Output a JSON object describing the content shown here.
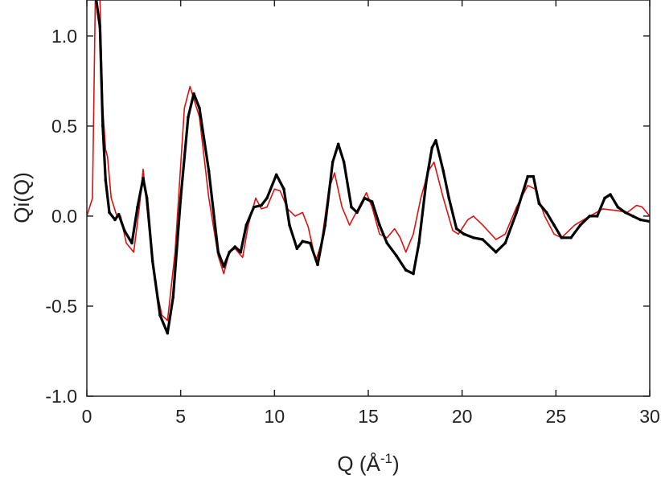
{
  "chart_data": {
    "type": "line",
    "title": "",
    "xlabel": "Q (Å",
    "xlabel_sup": "-1",
    "xlabel_close": ")",
    "ylabel": "Qi(Q)",
    "xlim": [
      0,
      30
    ],
    "ylim": [
      -1.0,
      1.2
    ],
    "grid": false,
    "legend": "none",
    "x_ticks": [
      0,
      5,
      10,
      15,
      20,
      25,
      30
    ],
    "x_tick_labels": [
      "0",
      "5",
      "10",
      "15",
      "20",
      "25",
      "30"
    ],
    "y_ticks": [
      -1.0,
      -0.5,
      0.0,
      0.5,
      1.0
    ],
    "y_tick_labels": [
      "-1.0",
      "-0.5",
      "0.0",
      "0.5",
      "1.0"
    ],
    "series": [
      {
        "color": "#dd1111",
        "style": "thin",
        "points": [
          [
            0.0,
            0.0
          ],
          [
            0.3,
            0.1
          ],
          [
            0.45,
            1.2
          ],
          [
            0.7,
            1.2
          ],
          [
            0.85,
            0.6
          ],
          [
            1.0,
            0.37
          ],
          [
            1.1,
            0.33
          ],
          [
            1.3,
            0.1
          ],
          [
            1.6,
            0.0
          ],
          [
            1.8,
            0.0
          ],
          [
            2.1,
            -0.15
          ],
          [
            2.5,
            -0.2
          ],
          [
            2.8,
            0.05
          ],
          [
            3.0,
            0.26
          ],
          [
            3.2,
            0.05
          ],
          [
            3.6,
            -0.35
          ],
          [
            4.0,
            -0.55
          ],
          [
            4.3,
            -0.58
          ],
          [
            4.7,
            -0.2
          ],
          [
            5.2,
            0.6
          ],
          [
            5.5,
            0.72
          ],
          [
            6.0,
            0.55
          ],
          [
            6.5,
            0.1
          ],
          [
            7.0,
            -0.22
          ],
          [
            7.3,
            -0.32
          ],
          [
            7.6,
            -0.2
          ],
          [
            7.9,
            -0.18
          ],
          [
            8.3,
            -0.23
          ],
          [
            8.6,
            -0.05
          ],
          [
            9.0,
            0.1
          ],
          [
            9.3,
            0.04
          ],
          [
            9.6,
            0.05
          ],
          [
            10.0,
            0.15
          ],
          [
            10.3,
            0.14
          ],
          [
            10.7,
            0.04
          ],
          [
            11.1,
            0.0
          ],
          [
            11.5,
            0.02
          ],
          [
            11.8,
            -0.06
          ],
          [
            12.2,
            -0.25
          ],
          [
            12.5,
            -0.15
          ],
          [
            12.9,
            0.15
          ],
          [
            13.2,
            0.24
          ],
          [
            13.6,
            0.05
          ],
          [
            14.0,
            -0.05
          ],
          [
            14.5,
            0.05
          ],
          [
            14.9,
            0.13
          ],
          [
            15.2,
            0.05
          ],
          [
            15.6,
            -0.1
          ],
          [
            16.0,
            -0.12
          ],
          [
            16.4,
            -0.07
          ],
          [
            16.7,
            -0.12
          ],
          [
            17.0,
            -0.2
          ],
          [
            17.4,
            -0.1
          ],
          [
            17.8,
            0.1
          ],
          [
            18.2,
            0.25
          ],
          [
            18.5,
            0.3
          ],
          [
            19.0,
            0.1
          ],
          [
            19.5,
            -0.08
          ],
          [
            19.8,
            -0.1
          ],
          [
            20.3,
            -0.02
          ],
          [
            20.6,
            0.0
          ],
          [
            21.1,
            -0.05
          ],
          [
            21.8,
            -0.13
          ],
          [
            22.3,
            -0.1
          ],
          [
            22.9,
            0.05
          ],
          [
            23.5,
            0.17
          ],
          [
            23.9,
            0.15
          ],
          [
            24.4,
            0.0
          ],
          [
            24.9,
            -0.1
          ],
          [
            25.3,
            -0.12
          ],
          [
            26.0,
            -0.05
          ],
          [
            26.8,
            0.0
          ],
          [
            27.5,
            0.04
          ],
          [
            28.3,
            0.03
          ],
          [
            28.8,
            0.02
          ],
          [
            29.3,
            0.06
          ],
          [
            29.6,
            0.05
          ],
          [
            30.0,
            0.0
          ]
        ]
      },
      {
        "color": "#000000",
        "style": "thick-dotted",
        "points": [
          [
            0.5,
            1.2
          ],
          [
            0.7,
            1.05
          ],
          [
            0.85,
            0.5
          ],
          [
            1.0,
            0.2
          ],
          [
            1.2,
            0.02
          ],
          [
            1.5,
            -0.02
          ],
          [
            1.7,
            0.01
          ],
          [
            2.0,
            -0.08
          ],
          [
            2.4,
            -0.15
          ],
          [
            2.7,
            0.05
          ],
          [
            3.0,
            0.21
          ],
          [
            3.2,
            0.1
          ],
          [
            3.5,
            -0.25
          ],
          [
            3.9,
            -0.55
          ],
          [
            4.3,
            -0.65
          ],
          [
            4.6,
            -0.45
          ],
          [
            5.0,
            0.1
          ],
          [
            5.4,
            0.55
          ],
          [
            5.7,
            0.68
          ],
          [
            6.0,
            0.6
          ],
          [
            6.5,
            0.25
          ],
          [
            7.0,
            -0.2
          ],
          [
            7.3,
            -0.28
          ],
          [
            7.6,
            -0.2
          ],
          [
            7.9,
            -0.17
          ],
          [
            8.2,
            -0.2
          ],
          [
            8.5,
            -0.05
          ],
          [
            8.9,
            0.05
          ],
          [
            9.3,
            0.06
          ],
          [
            9.6,
            0.1
          ],
          [
            10.1,
            0.23
          ],
          [
            10.5,
            0.15
          ],
          [
            10.8,
            -0.05
          ],
          [
            11.2,
            -0.18
          ],
          [
            11.5,
            -0.14
          ],
          [
            11.9,
            -0.15
          ],
          [
            12.3,
            -0.27
          ],
          [
            12.7,
            -0.05
          ],
          [
            13.1,
            0.3
          ],
          [
            13.4,
            0.4
          ],
          [
            13.7,
            0.3
          ],
          [
            14.1,
            0.05
          ],
          [
            14.4,
            0.02
          ],
          [
            14.8,
            0.1
          ],
          [
            15.2,
            0.08
          ],
          [
            15.6,
            -0.05
          ],
          [
            16.0,
            -0.15
          ],
          [
            16.5,
            -0.22
          ],
          [
            17.0,
            -0.3
          ],
          [
            17.4,
            -0.32
          ],
          [
            17.7,
            -0.15
          ],
          [
            18.1,
            0.2
          ],
          [
            18.4,
            0.38
          ],
          [
            18.6,
            0.42
          ],
          [
            19.0,
            0.25
          ],
          [
            19.3,
            0.1
          ],
          [
            19.7,
            -0.07
          ],
          [
            20.1,
            -0.1
          ],
          [
            20.6,
            -0.12
          ],
          [
            21.1,
            -0.13
          ],
          [
            21.8,
            -0.2
          ],
          [
            22.3,
            -0.15
          ],
          [
            22.9,
            0.02
          ],
          [
            23.5,
            0.22
          ],
          [
            23.8,
            0.22
          ],
          [
            24.1,
            0.07
          ],
          [
            24.5,
            0.02
          ],
          [
            24.9,
            -0.05
          ],
          [
            25.3,
            -0.12
          ],
          [
            25.8,
            -0.12
          ],
          [
            26.3,
            -0.05
          ],
          [
            26.8,
            0.0
          ],
          [
            27.2,
            0.0
          ],
          [
            27.6,
            0.1
          ],
          [
            27.9,
            0.12
          ],
          [
            28.3,
            0.05
          ],
          [
            28.7,
            0.02
          ],
          [
            29.1,
            0.0
          ],
          [
            29.5,
            -0.02
          ],
          [
            30.0,
            -0.03
          ]
        ]
      }
    ]
  }
}
